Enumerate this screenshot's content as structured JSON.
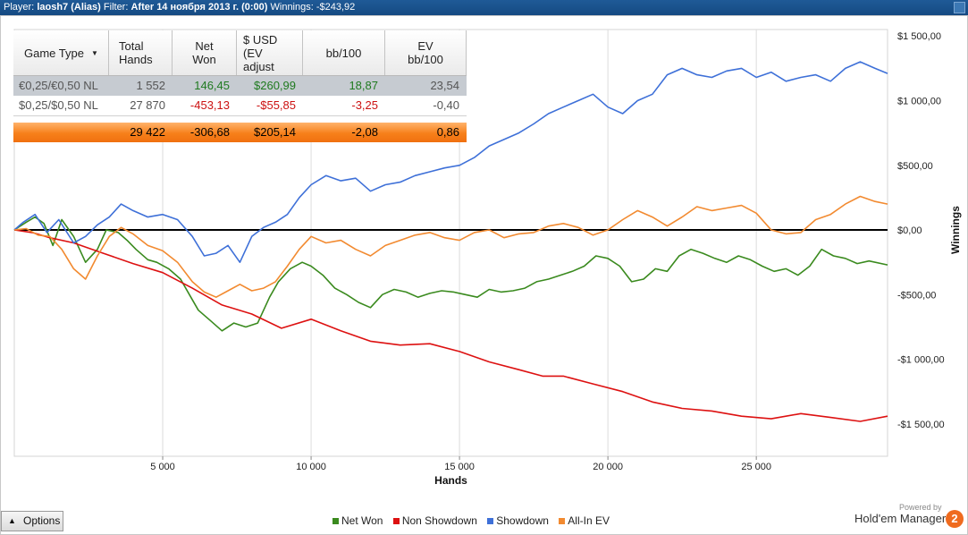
{
  "header": {
    "player_label": "Player:",
    "player_value": "laosh7 (Alias)",
    "filter_label": "Filter:",
    "filter_value": "After 14 ноября 2013 г. (0:00)",
    "winnings_label": "Winnings:",
    "winnings_value": "-$243,92"
  },
  "table": {
    "headers": [
      "Game Type",
      "Total Hands",
      "Net Won",
      "$ USD (EV adjust",
      "bb/100",
      "EV bb/100"
    ],
    "rows": [
      {
        "game": "€0,25/€0,50 NL",
        "hands": "1 552",
        "net": "146,45",
        "usd": "$260,99",
        "bb": "18,87",
        "ev": "23,54"
      },
      {
        "game": "$0,25/$0,50 NL",
        "hands": "27 870",
        "net": "-453,13",
        "usd": "-$55,85",
        "bb": "-3,25",
        "ev": "-0,40"
      }
    ],
    "total": {
      "hands": "29 422",
      "net": "-306,68",
      "usd": "$205,14",
      "bb": "-2,08",
      "ev": "0,86"
    }
  },
  "chart_data": {
    "type": "line",
    "xlabel": "Hands",
    "ylabel": "Winnings",
    "xlim": [
      0,
      29422
    ],
    "ylim": [
      -1750,
      1550
    ],
    "x_ticks": [
      5000,
      10000,
      15000,
      20000,
      25000
    ],
    "x_tick_labels": [
      "5 000",
      "10 000",
      "15 000",
      "20 000",
      "25 000"
    ],
    "y_ticks": [
      1500,
      1000,
      500,
      0,
      -500,
      -1000,
      -1500
    ],
    "y_tick_labels": [
      "$1 500,00",
      "$1 000,00",
      "$500,00",
      "$0,00",
      "-$500,00",
      "-$1 000,00",
      "-$1 500,00"
    ],
    "y_axis_side": "right",
    "grid": "vertical",
    "legend_position": "bottom",
    "series": [
      {
        "name": "Net Won",
        "color": "#3a8a1e",
        "x": [
          0,
          400,
          700,
          1000,
          1300,
          1600,
          2000,
          2400,
          2800,
          3100,
          3500,
          3800,
          4100,
          4500,
          4800,
          5200,
          5600,
          5900,
          6200,
          6600,
          7000,
          7400,
          7800,
          8200,
          8600,
          8900,
          9300,
          9700,
          10000,
          10400,
          10800,
          11200,
          11600,
          12000,
          12400,
          12800,
          13200,
          13600,
          14000,
          14400,
          14800,
          15200,
          15600,
          16000,
          16400,
          16800,
          17200,
          17600,
          18000,
          18400,
          18800,
          19200,
          19600,
          20000,
          20400,
          20800,
          21200,
          21600,
          22000,
          22400,
          22800,
          23200,
          23600,
          24000,
          24400,
          24800,
          25200,
          25600,
          26000,
          26400,
          26800,
          27200,
          27600,
          28000,
          28400,
          28800,
          29422
        ],
        "values": [
          0,
          60,
          100,
          50,
          -120,
          80,
          -50,
          -250,
          -150,
          0,
          -20,
          -80,
          -150,
          -230,
          -250,
          -300,
          -380,
          -500,
          -620,
          -700,
          -780,
          -720,
          -750,
          -720,
          -520,
          -400,
          -300,
          -250,
          -280,
          -350,
          -450,
          -500,
          -560,
          -600,
          -500,
          -460,
          -480,
          -520,
          -490,
          -470,
          -480,
          -500,
          -520,
          -460,
          -480,
          -470,
          -450,
          -400,
          -380,
          -350,
          -320,
          -280,
          -200,
          -220,
          -280,
          -400,
          -380,
          -300,
          -320,
          -200,
          -150,
          -180,
          -220,
          -250,
          -200,
          -230,
          -280,
          -320,
          -300,
          -350,
          -280,
          -150,
          -200,
          -220,
          -260,
          -240,
          -270
        ]
      },
      {
        "name": "Non Showdown",
        "color": "#dd1111",
        "x": [
          0,
          600,
          1200,
          2000,
          3000,
          4000,
          5000,
          6000,
          7000,
          8000,
          9000,
          10000,
          11000,
          12000,
          13000,
          14000,
          15000,
          16000,
          17000,
          17800,
          18500,
          19500,
          20500,
          21500,
          22500,
          23500,
          24500,
          25500,
          26500,
          27500,
          28500,
          29422
        ],
        "values": [
          0,
          -20,
          -60,
          -100,
          -180,
          -260,
          -330,
          -450,
          -580,
          -650,
          -760,
          -690,
          -780,
          -860,
          -890,
          -880,
          -940,
          -1020,
          -1080,
          -1130,
          -1130,
          -1190,
          -1250,
          -1330,
          -1380,
          -1400,
          -1440,
          -1460,
          -1420,
          -1450,
          -1480,
          -1440
        ]
      },
      {
        "name": "Showdown",
        "color": "#3e70d8",
        "x": [
          0,
          300,
          700,
          1100,
          1500,
          2000,
          2400,
          2800,
          3200,
          3600,
          4000,
          4500,
          5000,
          5500,
          6000,
          6400,
          6800,
          7200,
          7600,
          8000,
          8400,
          8800,
          9200,
          9600,
          10000,
          10500,
          11000,
          11500,
          12000,
          12500,
          13000,
          13500,
          14000,
          14500,
          15000,
          15500,
          16000,
          16500,
          17000,
          17500,
          18000,
          18500,
          19000,
          19500,
          20000,
          20500,
          21000,
          21500,
          22000,
          22500,
          23000,
          23500,
          24000,
          24500,
          25000,
          25500,
          26000,
          26500,
          27000,
          27500,
          28000,
          28500,
          29000,
          29422
        ],
        "values": [
          0,
          60,
          120,
          -20,
          80,
          -100,
          -50,
          40,
          100,
          200,
          150,
          100,
          120,
          80,
          -50,
          -200,
          -180,
          -120,
          -250,
          -50,
          20,
          60,
          120,
          250,
          350,
          420,
          380,
          400,
          300,
          350,
          370,
          420,
          450,
          480,
          500,
          560,
          650,
          700,
          750,
          820,
          900,
          950,
          1000,
          1050,
          950,
          900,
          1000,
          1050,
          1200,
          1250,
          1200,
          1180,
          1230,
          1250,
          1180,
          1220,
          1150,
          1180,
          1200,
          1150,
          1250,
          1300,
          1250,
          1210
        ]
      },
      {
        "name": "All-In EV",
        "color": "#f28a30",
        "x": [
          0,
          400,
          800,
          1200,
          1600,
          2000,
          2400,
          2800,
          3200,
          3600,
          4000,
          4500,
          5000,
          5500,
          6000,
          6400,
          6800,
          7200,
          7600,
          8000,
          8400,
          8800,
          9200,
          9600,
          10000,
          10500,
          11000,
          11500,
          12000,
          12500,
          13000,
          13500,
          14000,
          14500,
          15000,
          15500,
          16000,
          16500,
          17000,
          17500,
          18000,
          18500,
          19000,
          19500,
          20000,
          20500,
          21000,
          21500,
          22000,
          22500,
          23000,
          23500,
          24000,
          24500,
          25000,
          25500,
          26000,
          26500,
          27000,
          27500,
          28000,
          28500,
          29000,
          29422
        ],
        "values": [
          0,
          10,
          -40,
          -50,
          -150,
          -300,
          -380,
          -200,
          -50,
          20,
          -30,
          -120,
          -160,
          -250,
          -400,
          -480,
          -520,
          -470,
          -420,
          -470,
          -450,
          -400,
          -280,
          -150,
          -50,
          -100,
          -80,
          -150,
          -200,
          -120,
          -80,
          -40,
          -20,
          -60,
          -80,
          -20,
          0,
          -60,
          -30,
          -20,
          30,
          50,
          20,
          -40,
          0,
          80,
          150,
          100,
          30,
          100,
          180,
          150,
          170,
          190,
          130,
          0,
          -30,
          -20,
          80,
          120,
          200,
          260,
          220,
          200
        ]
      }
    ]
  },
  "legend": [
    {
      "label": "Net Won",
      "color": "#3a8a1e"
    },
    {
      "label": "Non Showdown",
      "color": "#dd1111"
    },
    {
      "label": "Showdown",
      "color": "#3e70d8"
    },
    {
      "label": "All-In EV",
      "color": "#f28a30"
    }
  ],
  "footer": {
    "options_label": "Options",
    "powered_by": "Powered by",
    "brand": "Hold'em Manager",
    "brand_version": "2"
  }
}
